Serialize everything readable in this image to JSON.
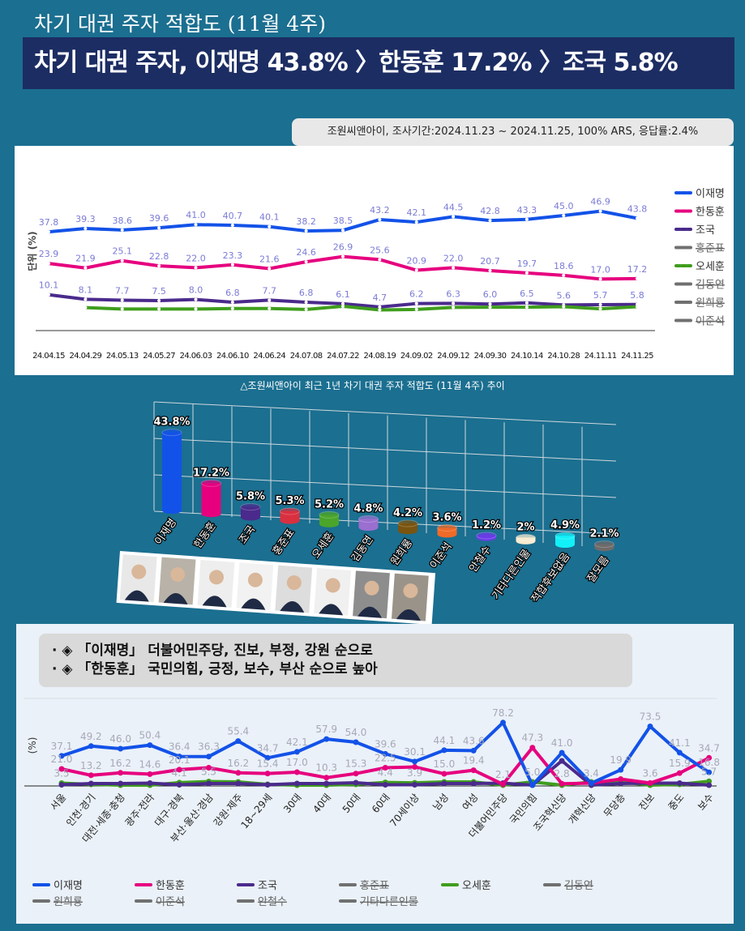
{
  "header": {
    "title": "차기 대권 주자 적합도 (11월 4주)",
    "headline": "차기 대권 주자, 이재명 43.8% 〉한동훈 17.2% 〉조국 5.8%"
  },
  "source": "조원씨앤아이, 조사기간:2024.11.23 ~ 2024.11.25, 100% ARS, 응답률:2.4%",
  "caption": "△조원씨앤아이 최근 1년 차기 대권 주자 적합도 (11월 4주) 추이",
  "colors": {
    "이재명": "#1352e8",
    "한동훈": "#e6007e",
    "조국": "#4a2a8c",
    "오세훈": "#3f9e1d",
    "gray": "#707070"
  },
  "note": [
    "· ◈ 「이재명」 더불어민주당, 진보, 부정, 강원 순으로",
    "· ◈ 「한동훈」 국민의힘, 긍정, 보수, 부산 순으로 높아"
  ],
  "chart_data": [
    {
      "type": "line",
      "title": "최근 1년 차기 대권 주자 적합도 추이",
      "ylabel": "단위 (%)",
      "x": [
        "24.04.15",
        "24.04.29",
        "24.05.13",
        "24.05.27",
        "24.06.03",
        "24.06.10",
        "24.06.24",
        "24.07.08",
        "24.07.22",
        "24.08.19",
        "24.09.02",
        "24.09.12",
        "24.09.30",
        "24.10.14",
        "24.10.28",
        "24.11.11",
        "24.11.25"
      ],
      "series": [
        {
          "name": "이재명",
          "values": [
            37.8,
            39.3,
            38.6,
            39.6,
            41.0,
            40.7,
            40.1,
            38.2,
            38.5,
            43.2,
            42.1,
            44.5,
            42.8,
            43.3,
            45.0,
            46.9,
            43.8
          ],
          "labeled": true
        },
        {
          "name": "한동훈",
          "values": [
            23.9,
            21.9,
            25.1,
            22.8,
            22.0,
            23.3,
            21.6,
            24.6,
            26.9,
            25.6,
            20.9,
            22.0,
            20.7,
            19.7,
            18.6,
            17.0,
            17.2
          ],
          "labeled": true
        },
        {
          "name": "조국",
          "values": [
            10.1,
            8.1,
            7.7,
            7.5,
            8.0,
            6.8,
            7.7,
            6.8,
            6.1,
            4.7,
            6.2,
            6.3,
            6.0,
            6.5,
            5.6,
            5.7,
            5.8
          ],
          "labeled": true
        },
        {
          "name": "오세훈",
          "values": [
            null,
            4.4,
            3.8,
            3.8,
            3.8,
            4.0,
            4.0,
            3.6,
            5.0,
            3.4,
            3.6,
            4.5,
            4.6,
            4.6,
            4.8,
            3.9,
            4.8
          ],
          "labeled": false
        }
      ],
      "legend": [
        {
          "name": "이재명",
          "hidden": false
        },
        {
          "name": "한동훈",
          "hidden": false
        },
        {
          "name": "조국",
          "hidden": false
        },
        {
          "name": "홍준표",
          "hidden": true
        },
        {
          "name": "오세훈",
          "hidden": false
        },
        {
          "name": "김동연",
          "hidden": true
        },
        {
          "name": "원희룡",
          "hidden": true
        },
        {
          "name": "이준석",
          "hidden": true
        }
      ],
      "legend_position": "right"
    },
    {
      "type": "bar",
      "title": "차기 대권 주자 적합도 (11월 4주)",
      "categories": [
        "이재명",
        "한동훈",
        "조국",
        "홍준표",
        "오세훈",
        "김동연",
        "원희룡",
        "이준석",
        "안철수",
        "기타다른인물",
        "적합후보없음",
        "잘모름"
      ],
      "labels": [
        "43.8%",
        "17.2%",
        "5.8%",
        "5.3%",
        "5.2%",
        "4.8%",
        "4.2%",
        "3.6%",
        "1.2%",
        "2%",
        "4.9%",
        "2.1%"
      ],
      "values": [
        43.8,
        17.2,
        5.8,
        5.3,
        5.2,
        4.8,
        4.2,
        3.6,
        1.2,
        2,
        4.9,
        2.1
      ],
      "bar_colors": [
        "#1352e8",
        "#e6007e",
        "#4a2a8c",
        "#d93040",
        "#4aa52a",
        "#9a6fd0",
        "#7a5410",
        "#f06a28",
        "#6a3be8",
        "#f8ecd0",
        "#12f0f8",
        "#6f6a6a"
      ]
    },
    {
      "type": "line",
      "ylabel": "(%)",
      "categories": [
        "서울",
        "인천·경기",
        "대전·세종·충청",
        "광주·전라",
        "대구·경북",
        "부산·울산·경남",
        "강원·제주",
        "18~29세",
        "30대",
        "40대",
        "50대",
        "60대",
        "70세이상",
        "남성",
        "여성",
        "더불어민주당",
        "국민의힘",
        "조국혁신당",
        "개혁신당",
        "무당층",
        "진보",
        "중도",
        "보수"
      ],
      "series": [
        {
          "name": "이재명",
          "values": [
            37.1,
            49.2,
            46.0,
            50.4,
            36.4,
            36.3,
            55.4,
            34.7,
            42.1,
            57.9,
            54.0,
            39.6,
            30.1,
            44.1,
            43.6,
            78.2,
            1.0,
            41.0,
            3.4,
            19.9,
            73.5,
            41.1,
            16.8
          ],
          "labels": [
            "37.1",
            "49.2",
            "46.0",
            "50.4",
            "36.4",
            "36.3",
            "55.4",
            "34.7",
            "42.1",
            "57.9",
            "54.0",
            "39.6",
            "30.1",
            "44.1",
            "43.6",
            "78.2",
            "",
            "41.0",
            "3.4",
            "19.9",
            "73.5",
            "41.1",
            "16.8"
          ]
        },
        {
          "name": "한동훈",
          "values": [
            21.0,
            13.2,
            16.2,
            14.6,
            20.1,
            22.5,
            16.2,
            15.4,
            17.0,
            10.3,
            15.3,
            22.5,
            23.5,
            15.0,
            19.4,
            2.1,
            47.3,
            2.8,
            3.5,
            8.5,
            3.6,
            15.9,
            34.7
          ],
          "labels": [
            "21.0",
            "13.2",
            "16.2",
            "14.6",
            "20.1",
            "",
            "16.2",
            "15.4",
            "17.0",
            "10.3",
            "15.3",
            "22.5",
            "",
            "15.0",
            "19.4",
            "2.1",
            "47.3",
            "2.8",
            "",
            "",
            "3.6",
            "15.9",
            "34.7"
          ]
        },
        {
          "name": "조국",
          "values": [
            1.5,
            3.0,
            3.0,
            3.5,
            1.5,
            3.0,
            3.0,
            1.5,
            3.0,
            3.0,
            4.0,
            1.5,
            1.5,
            3.0,
            3.0,
            3.5,
            1.0,
            31.0,
            1.0,
            3.0,
            3.5,
            3.5,
            1.0
          ]
        },
        {
          "name": "오세훈",
          "values": [
            3.5,
            2.0,
            1.0,
            1.0,
            4.1,
            5.5,
            5.0,
            2.0,
            1.0,
            1.0,
            2.0,
            4.4,
            3.9,
            5.0,
            5.0,
            1.0,
            5.0,
            1.0,
            5.0,
            5.0,
            1.0,
            2.0,
            5.7
          ],
          "labels": [
            "3.5",
            "",
            "",
            "",
            "4.1",
            "5.5",
            "",
            "",
            "",
            "",
            "",
            "4.4",
            "3.9",
            "",
            "",
            "",
            "5.0",
            "",
            "",
            "",
            "",
            "",
            "5.7"
          ]
        }
      ],
      "legend": [
        {
          "name": "이재명",
          "hidden": false
        },
        {
          "name": "한동훈",
          "hidden": false
        },
        {
          "name": "조국",
          "hidden": false
        },
        {
          "name": "홍준표",
          "hidden": true
        },
        {
          "name": "오세훈",
          "hidden": false
        },
        {
          "name": "김동연",
          "hidden": true
        },
        {
          "name": "원희룡",
          "hidden": true
        },
        {
          "name": "이준석",
          "hidden": true
        },
        {
          "name": "안철수",
          "hidden": true
        },
        {
          "name": "기타다른인물",
          "hidden": true
        }
      ],
      "legend_position": "bottom"
    }
  ]
}
